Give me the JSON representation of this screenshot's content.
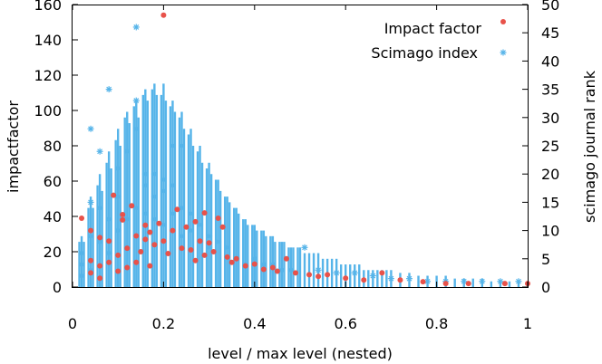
{
  "chart_data": {
    "type": "scatter",
    "xlabel": "level / max level (nested)",
    "ylabel": "impactfactor",
    "y2label": "scimago journal rank",
    "xlim": [
      0,
      1
    ],
    "ylim": [
      0,
      160
    ],
    "y2lim": [
      0,
      50
    ],
    "xticks": [
      "0",
      "0.2",
      "0.4",
      "0.6",
      "0.8",
      "1"
    ],
    "yticks": [
      "0",
      "20",
      "40",
      "60",
      "80",
      "100",
      "120",
      "140",
      "160"
    ],
    "y2ticks": [
      "0",
      "5",
      "10",
      "15",
      "20",
      "25",
      "30",
      "35",
      "40",
      "45",
      "50"
    ],
    "legend_position": "top-right",
    "grid": false,
    "series": [
      {
        "name": "Impact factor",
        "axis": "left",
        "color": "#e8524a",
        "marker": "dot",
        "points": [
          [
            0.02,
            39
          ],
          [
            0.04,
            32
          ],
          [
            0.04,
            15
          ],
          [
            0.04,
            8
          ],
          [
            0.06,
            28
          ],
          [
            0.06,
            12
          ],
          [
            0.06,
            5
          ],
          [
            0.08,
            26
          ],
          [
            0.08,
            14
          ],
          [
            0.09,
            52
          ],
          [
            0.1,
            18
          ],
          [
            0.1,
            9
          ],
          [
            0.11,
            41
          ],
          [
            0.11,
            38
          ],
          [
            0.12,
            22
          ],
          [
            0.12,
            11
          ],
          [
            0.13,
            46
          ],
          [
            0.14,
            29
          ],
          [
            0.14,
            14
          ],
          [
            0.15,
            20
          ],
          [
            0.16,
            35
          ],
          [
            0.16,
            27
          ],
          [
            0.17,
            31
          ],
          [
            0.17,
            12
          ],
          [
            0.18,
            24
          ],
          [
            0.19,
            36
          ],
          [
            0.2,
            154
          ],
          [
            0.2,
            26
          ],
          [
            0.21,
            19
          ],
          [
            0.22,
            32
          ],
          [
            0.23,
            44
          ],
          [
            0.24,
            22
          ],
          [
            0.25,
            34
          ],
          [
            0.26,
            21
          ],
          [
            0.27,
            37
          ],
          [
            0.27,
            15
          ],
          [
            0.28,
            26
          ],
          [
            0.29,
            42
          ],
          [
            0.29,
            18
          ],
          [
            0.3,
            25
          ],
          [
            0.31,
            20
          ],
          [
            0.32,
            39
          ],
          [
            0.33,
            34
          ],
          [
            0.34,
            17
          ],
          [
            0.35,
            14
          ],
          [
            0.36,
            16
          ],
          [
            0.38,
            12
          ],
          [
            0.4,
            13
          ],
          [
            0.42,
            10
          ],
          [
            0.44,
            11
          ],
          [
            0.45,
            9
          ],
          [
            0.47,
            16
          ],
          [
            0.49,
            8
          ],
          [
            0.52,
            7
          ],
          [
            0.54,
            6
          ],
          [
            0.56,
            7
          ],
          [
            0.6,
            5
          ],
          [
            0.64,
            4
          ],
          [
            0.68,
            8
          ],
          [
            0.72,
            4
          ],
          [
            0.77,
            3
          ],
          [
            0.82,
            2
          ],
          [
            0.87,
            2
          ],
          [
            0.95,
            2
          ],
          [
            1.0,
            2
          ]
        ]
      },
      {
        "name": "Scimago index",
        "axis": "right",
        "color": "#56b4e9",
        "marker": "star",
        "points": [
          [
            0.02,
            6
          ],
          [
            0.02,
            4
          ],
          [
            0.02,
            2
          ],
          [
            0.04,
            28
          ],
          [
            0.04,
            15
          ],
          [
            0.04,
            9
          ],
          [
            0.04,
            3
          ],
          [
            0.06,
            24
          ],
          [
            0.06,
            14
          ],
          [
            0.06,
            8
          ],
          [
            0.08,
            35
          ],
          [
            0.08,
            12
          ],
          [
            0.08,
            6
          ],
          [
            0.1,
            21
          ],
          [
            0.1,
            16
          ],
          [
            0.1,
            10
          ],
          [
            0.12,
            24
          ],
          [
            0.12,
            12
          ],
          [
            0.12,
            7
          ],
          [
            0.14,
            46
          ],
          [
            0.14,
            33
          ],
          [
            0.14,
            28
          ],
          [
            0.14,
            14
          ],
          [
            0.16,
            20
          ],
          [
            0.16,
            18
          ],
          [
            0.16,
            13
          ],
          [
            0.18,
            20
          ],
          [
            0.18,
            16
          ],
          [
            0.18,
            12
          ],
          [
            0.2,
            19
          ],
          [
            0.2,
            17
          ],
          [
            0.2,
            11
          ],
          [
            0.22,
            25
          ],
          [
            0.22,
            18
          ],
          [
            0.22,
            13
          ],
          [
            0.24,
            25
          ],
          [
            0.24,
            14
          ],
          [
            0.24,
            9
          ],
          [
            0.26,
            13
          ],
          [
            0.26,
            10
          ],
          [
            0.28,
            11
          ],
          [
            0.28,
            8
          ],
          [
            0.3,
            9
          ],
          [
            0.3,
            7
          ],
          [
            0.32,
            8
          ],
          [
            0.34,
            7
          ],
          [
            0.36,
            5
          ],
          [
            0.38,
            4
          ],
          [
            0.4,
            5
          ],
          [
            0.42,
            4
          ],
          [
            0.44,
            4
          ],
          [
            0.46,
            3
          ],
          [
            0.48,
            3
          ],
          [
            0.51,
            7
          ],
          [
            0.54,
            3
          ],
          [
            0.58,
            2.5
          ],
          [
            0.62,
            2.5
          ],
          [
            0.66,
            2
          ],
          [
            0.7,
            1.5
          ],
          [
            0.74,
            1.5
          ],
          [
            0.78,
            1
          ],
          [
            0.82,
            1
          ],
          [
            0.86,
            1
          ],
          [
            0.9,
            1
          ],
          [
            0.94,
            1
          ],
          [
            0.98,
            1
          ]
        ]
      }
    ],
    "column_fill": [
      [
        0.015,
        8
      ],
      [
        0.02,
        9
      ],
      [
        0.025,
        8
      ],
      [
        0.035,
        14
      ],
      [
        0.04,
        16
      ],
      [
        0.045,
        14
      ],
      [
        0.055,
        18
      ],
      [
        0.06,
        20
      ],
      [
        0.065,
        17
      ],
      [
        0.075,
        22
      ],
      [
        0.08,
        24
      ],
      [
        0.085,
        21
      ],
      [
        0.095,
        26
      ],
      [
        0.1,
        28
      ],
      [
        0.105,
        25
      ],
      [
        0.115,
        30
      ],
      [
        0.12,
        31
      ],
      [
        0.125,
        29
      ],
      [
        0.135,
        32
      ],
      [
        0.14,
        33
      ],
      [
        0.145,
        30
      ],
      [
        0.155,
        34
      ],
      [
        0.16,
        35
      ],
      [
        0.165,
        33
      ],
      [
        0.175,
        35
      ],
      [
        0.18,
        36
      ],
      [
        0.185,
        34
      ],
      [
        0.195,
        34
      ],
      [
        0.2,
        36
      ],
      [
        0.205,
        33
      ],
      [
        0.215,
        32
      ],
      [
        0.22,
        33
      ],
      [
        0.225,
        31
      ],
      [
        0.235,
        30
      ],
      [
        0.24,
        31
      ],
      [
        0.245,
        28
      ],
      [
        0.255,
        27
      ],
      [
        0.26,
        28
      ],
      [
        0.265,
        25
      ],
      [
        0.275,
        24
      ],
      [
        0.28,
        25
      ],
      [
        0.285,
        22
      ],
      [
        0.295,
        21
      ],
      [
        0.3,
        22
      ],
      [
        0.305,
        20
      ],
      [
        0.315,
        19
      ],
      [
        0.32,
        19
      ],
      [
        0.325,
        17
      ],
      [
        0.335,
        16
      ],
      [
        0.34,
        16
      ],
      [
        0.345,
        15
      ],
      [
        0.355,
        14
      ],
      [
        0.36,
        14
      ],
      [
        0.365,
        13
      ],
      [
        0.375,
        12
      ],
      [
        0.38,
        12
      ],
      [
        0.385,
        11
      ],
      [
        0.395,
        11
      ],
      [
        0.4,
        11
      ],
      [
        0.405,
        10
      ],
      [
        0.415,
        10
      ],
      [
        0.42,
        10
      ],
      [
        0.425,
        9
      ],
      [
        0.435,
        9
      ],
      [
        0.44,
        9
      ],
      [
        0.445,
        8
      ],
      [
        0.455,
        8
      ],
      [
        0.46,
        8
      ],
      [
        0.465,
        8
      ],
      [
        0.475,
        7
      ],
      [
        0.48,
        7
      ],
      [
        0.485,
        7
      ],
      [
        0.495,
        7
      ],
      [
        0.5,
        7
      ],
      [
        0.51,
        6
      ],
      [
        0.52,
        6
      ],
      [
        0.53,
        6
      ],
      [
        0.54,
        6
      ],
      [
        0.55,
        5
      ],
      [
        0.56,
        5
      ],
      [
        0.57,
        5
      ],
      [
        0.58,
        5
      ],
      [
        0.59,
        4
      ],
      [
        0.6,
        4
      ],
      [
        0.61,
        4
      ],
      [
        0.62,
        4
      ],
      [
        0.63,
        4
      ],
      [
        0.64,
        3
      ],
      [
        0.65,
        3
      ],
      [
        0.66,
        3
      ],
      [
        0.67,
        3
      ],
      [
        0.68,
        3
      ],
      [
        0.69,
        3
      ],
      [
        0.7,
        3
      ],
      [
        0.72,
        2.5
      ],
      [
        0.74,
        2.5
      ],
      [
        0.76,
        2
      ],
      [
        0.78,
        2
      ],
      [
        0.8,
        2
      ],
      [
        0.82,
        2
      ],
      [
        0.84,
        1.5
      ],
      [
        0.86,
        1.5
      ],
      [
        0.88,
        1.5
      ],
      [
        0.9,
        1.5
      ],
      [
        0.92,
        1
      ],
      [
        0.94,
        1
      ],
      [
        0.96,
        1
      ],
      [
        0.98,
        1
      ]
    ]
  }
}
